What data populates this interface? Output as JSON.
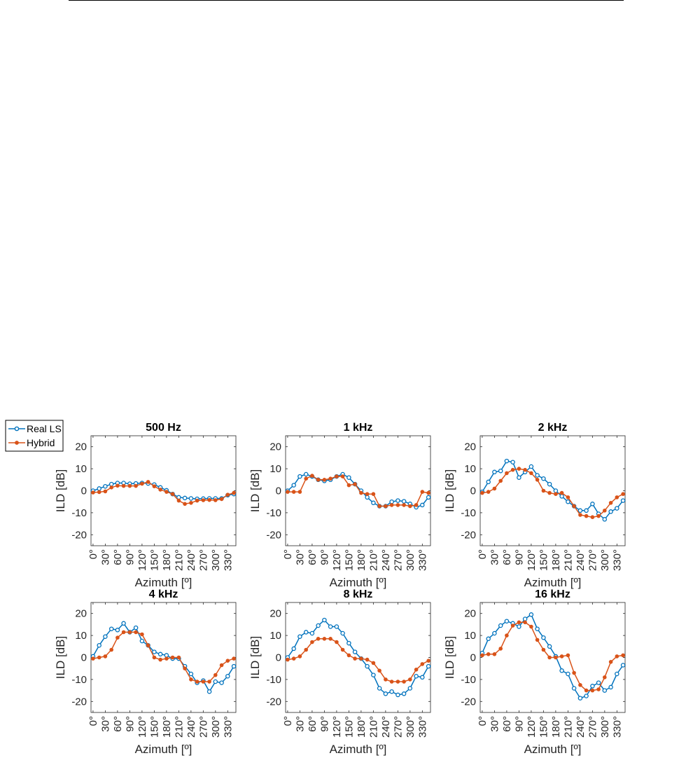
{
  "chart_data": {
    "type": "line",
    "x_tick_labels": [
      "0°",
      "30°",
      "60°",
      "90°",
      "120°",
      "150°",
      "180°",
      "210°",
      "240°",
      "270°",
      "300°",
      "330°"
    ],
    "xlim": [
      -5,
      350
    ],
    "ylim": [
      -25,
      25
    ],
    "y_ticks": [
      20,
      10,
      0,
      -10,
      -20
    ],
    "ylabel": "ILD [dB]",
    "xlabel": "Azimuth [º]",
    "legend": {
      "placement": "top-left",
      "entries": [
        "Real LS",
        "Hybrid"
      ]
    },
    "grid": false,
    "colors": {
      "Real LS": "#0072BD",
      "Hybrid": "#D95319"
    },
    "x": [
      0,
      15,
      30,
      45,
      60,
      75,
      90,
      105,
      120,
      135,
      150,
      165,
      180,
      195,
      210,
      225,
      240,
      255,
      270,
      285,
      300,
      315,
      330,
      345
    ],
    "panels": [
      {
        "title": "500 Hz",
        "series": [
          {
            "name": "Real LS",
            "values": [
              0,
              1,
              2,
              3,
              3.5,
              3.5,
              3.2,
              3.3,
              3.5,
              3.3,
              2.8,
              1.5,
              0.2,
              -1.5,
              -3,
              -3.3,
              -3.5,
              -3.7,
              -3.6,
              -3.5,
              -3.5,
              -3.5,
              -2,
              -1.5
            ]
          },
          {
            "name": "Hybrid",
            "values": [
              -0.8,
              -0.6,
              -0.3,
              1.5,
              2.3,
              2.2,
              2.2,
              2.2,
              3.2,
              4,
              2,
              0.5,
              -0.5,
              -1.5,
              -4.5,
              -6,
              -5.5,
              -4.5,
              -4.3,
              -4.2,
              -4.3,
              -3.8,
              -1.8,
              -1
            ]
          }
        ]
      },
      {
        "title": "1 kHz",
        "series": [
          {
            "name": "Real LS",
            "values": [
              0,
              2.5,
              6.5,
              7.5,
              6.5,
              5,
              4.5,
              5,
              6.5,
              7.5,
              6,
              3,
              0,
              -3,
              -5.5,
              -7,
              -7,
              -5,
              -4.5,
              -4.8,
              -6,
              -7.5,
              -6.5,
              -3
            ]
          },
          {
            "name": "Hybrid",
            "values": [
              -0.5,
              -0.5,
              -0.5,
              5.5,
              6.8,
              5,
              5,
              5.5,
              6.5,
              6.5,
              2.5,
              3,
              -1,
              -1.5,
              -1.5,
              -7,
              -7,
              -6.5,
              -6.5,
              -6.5,
              -7,
              -6.5,
              -0.5,
              -1
            ]
          }
        ]
      },
      {
        "title": "2 kHz",
        "series": [
          {
            "name": "Real LS",
            "values": [
              -0.5,
              4,
              8.5,
              9,
              13.5,
              13,
              6,
              8.5,
              11,
              7,
              5.5,
              3,
              0,
              -2.5,
              -5,
              -7,
              -9,
              -9,
              -6,
              -10.5,
              -13,
              -9.5,
              -8,
              -4.5
            ]
          },
          {
            "name": "Hybrid",
            "values": [
              -1,
              -0.5,
              1,
              4.5,
              8,
              9.5,
              10,
              9.5,
              8,
              5,
              0,
              -1,
              -1.5,
              -1,
              -3,
              -7,
              -11,
              -11.5,
              -12,
              -11.5,
              -9,
              -5.5,
              -3,
              -1.5
            ]
          }
        ]
      },
      {
        "title": "4 kHz",
        "series": [
          {
            "name": "Real LS",
            "values": [
              0.5,
              5.5,
              9.5,
              13,
              12.5,
              15.5,
              11.5,
              13.5,
              7.5,
              5.5,
              2.5,
              1.5,
              1,
              -0.5,
              -0.5,
              -4,
              -7.5,
              -11.5,
              -10.5,
              -15.5,
              -11,
              -11.5,
              -8.5,
              -4
            ]
          },
          {
            "name": "Hybrid",
            "values": [
              -0.5,
              0,
              0.5,
              3.5,
              9,
              11.5,
              11.5,
              11.5,
              10.5,
              5.5,
              0,
              -1,
              -0.5,
              0,
              0,
              -5,
              -10,
              -11,
              -11,
              -11,
              -8,
              -3.5,
              -1.5,
              -0.5
            ]
          }
        ]
      },
      {
        "title": "8 kHz",
        "series": [
          {
            "name": "Real LS",
            "values": [
              0,
              4,
              9.5,
              11.5,
              11,
              14.5,
              17,
              14,
              14,
              11,
              6.5,
              2.5,
              -0.5,
              -4,
              -8,
              -14,
              -16.5,
              -15.5,
              -17,
              -16.5,
              -14,
              -8.5,
              -9,
              -4
            ]
          },
          {
            "name": "Hybrid",
            "values": [
              -1,
              -0.5,
              0.5,
              3.5,
              7,
              8.5,
              8.5,
              8.5,
              7,
              3.5,
              1,
              -0.5,
              -0.5,
              -1,
              -2.5,
              -6,
              -10,
              -11,
              -11,
              -11,
              -10,
              -5.5,
              -3,
              -1.5
            ]
          }
        ]
      },
      {
        "title": "16 kHz",
        "series": [
          {
            "name": "Real LS",
            "values": [
              2,
              8.5,
              11,
              14.5,
              16.5,
              15.5,
              14,
              17.5,
              19.5,
              13,
              9,
              5,
              0.5,
              -6,
              -7.5,
              -14,
              -18.5,
              -17.5,
              -13,
              -11.5,
              -15,
              -13.5,
              -7.5,
              -3.5
            ]
          },
          {
            "name": "Hybrid",
            "values": [
              1,
              1.5,
              1.5,
              4,
              10,
              14.5,
              16,
              16,
              14,
              8,
              3.5,
              0,
              0,
              0.5,
              1,
              -7,
              -12.5,
              -15,
              -15,
              -14.5,
              -9,
              -2,
              0.5,
              1
            ]
          }
        ]
      }
    ]
  }
}
